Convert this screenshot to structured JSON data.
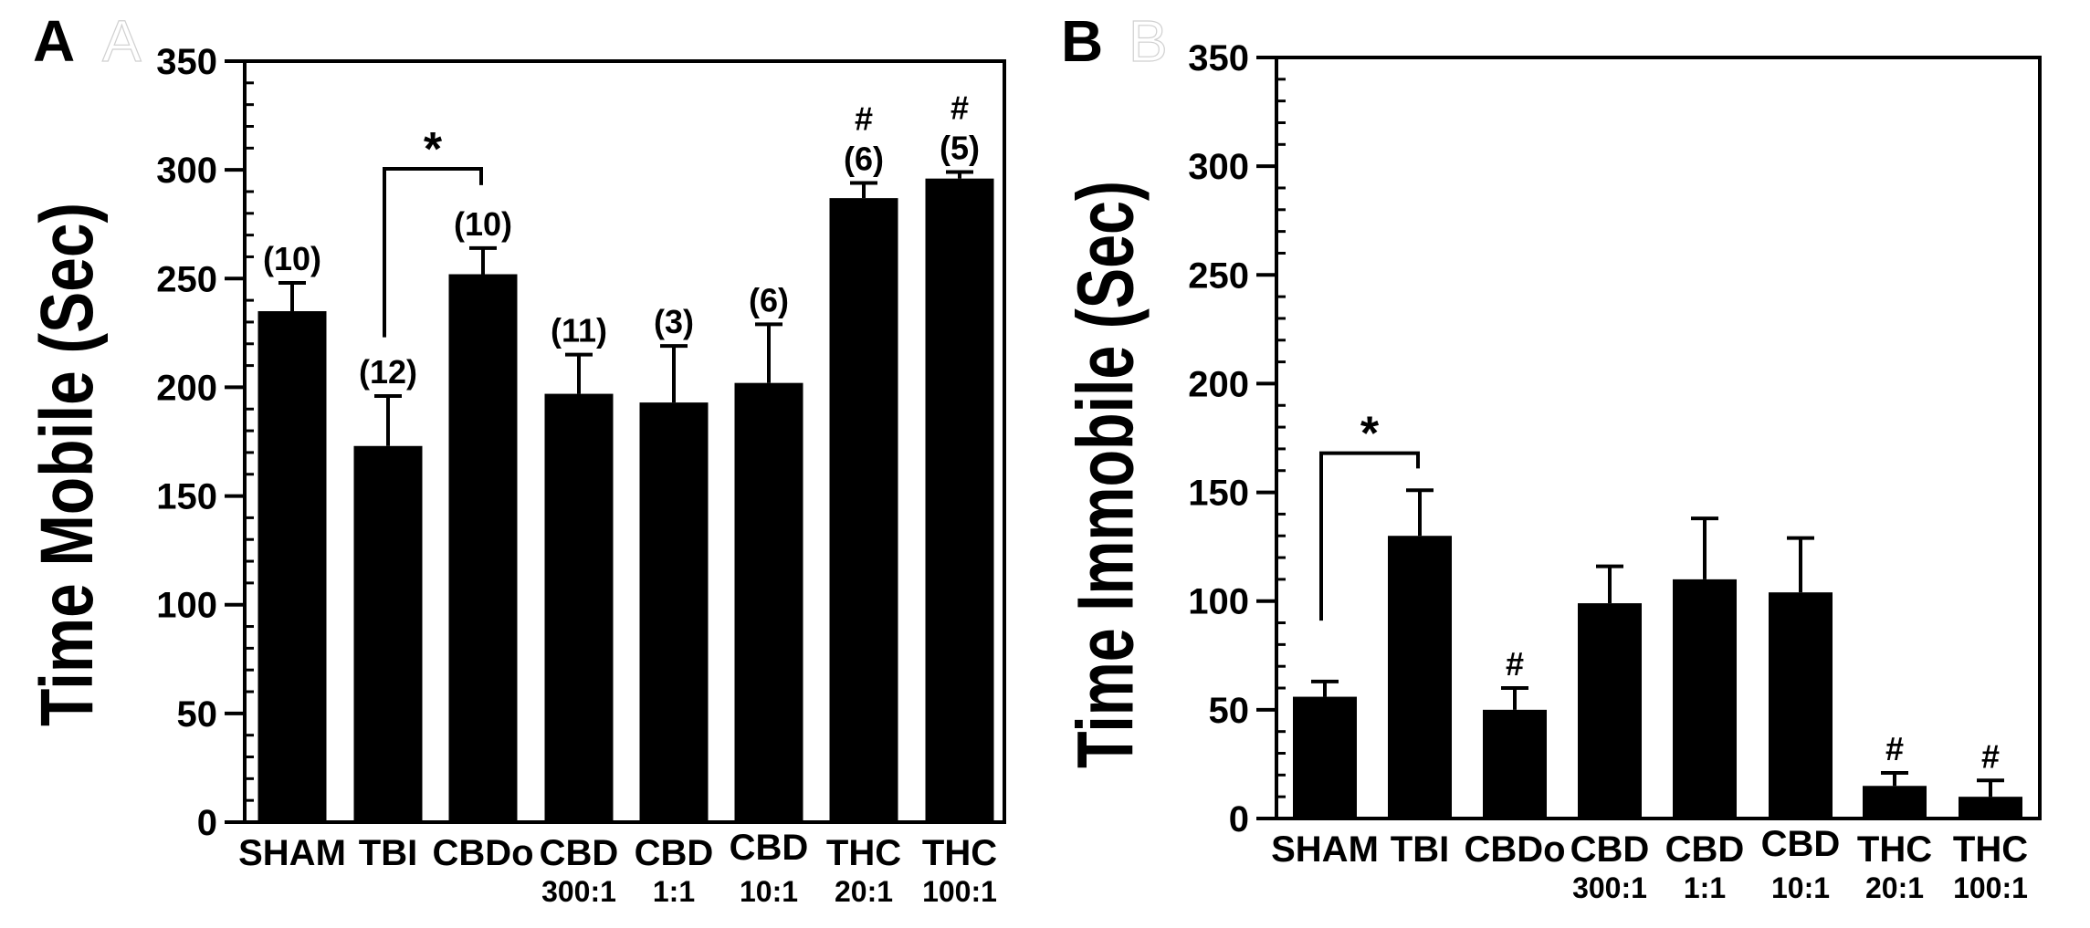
{
  "colors": {
    "bar": "#000000",
    "axis": "#000000",
    "background": "#ffffff",
    "ghost_letter": "#d0d0d0"
  },
  "chart_data": [
    {
      "panel": "A",
      "type": "bar",
      "ylabel": "Time Mobile (Sec)",
      "xlabel": "",
      "ylim": [
        0,
        350
      ],
      "yticks": [
        0,
        50,
        100,
        150,
        200,
        250,
        300,
        350
      ],
      "ytick_labels": [
        "0",
        "50",
        "100",
        "150",
        "200",
        "250",
        "300",
        "350"
      ],
      "minor_tick_step": 10,
      "grid": false,
      "categories": [
        "SHAM",
        "TBI",
        "CBDo",
        "CBD",
        "CBD",
        "CBD",
        "THC",
        "THC"
      ],
      "sub_labels": [
        "",
        "",
        "",
        "300:1",
        "1:1",
        "10:1",
        "20:1",
        "100:1"
      ],
      "values": [
        235,
        173,
        252,
        197,
        193,
        202,
        287,
        296
      ],
      "error_upper": [
        248,
        196,
        264,
        215,
        219,
        229,
        294,
        299
      ],
      "n_labels": [
        "(10)",
        "(12)",
        "(10)",
        "(11)",
        "(3)",
        "(6)",
        "(6)",
        "(5)"
      ],
      "markers": [
        "",
        "",
        "",
        "",
        "",
        "",
        "#",
        "#"
      ],
      "significance": {
        "from_index": 1,
        "to_index": 2,
        "label": "*",
        "left_bottom": 223,
        "top": 300.5,
        "right_bottom": 293
      }
    },
    {
      "panel": "B",
      "type": "bar",
      "ylabel": "Time Immobile (Sec)",
      "xlabel": "",
      "ylim": [
        0,
        350
      ],
      "yticks": [
        0,
        50,
        100,
        150,
        200,
        250,
        300,
        350
      ],
      "ytick_labels": [
        "0",
        "50",
        "100",
        "150",
        "200",
        "250",
        "300",
        "350"
      ],
      "minor_tick_step": 10,
      "grid": false,
      "categories": [
        "SHAM",
        "TBI",
        "CBDo",
        "CBD",
        "CBD",
        "CBD",
        "THC",
        "THC"
      ],
      "sub_labels": [
        "",
        "",
        "",
        "300:1",
        "1:1",
        "10:1",
        "20:1",
        "100:1"
      ],
      "values": [
        56,
        130,
        50,
        99,
        110,
        104,
        15,
        10
      ],
      "error_upper": [
        63,
        151,
        60,
        116,
        138,
        129,
        21,
        17.5
      ],
      "n_labels": [
        "",
        "",
        "",
        "",
        "",
        "",
        "",
        ""
      ],
      "markers": [
        "",
        "",
        "#",
        "",
        "",
        "",
        "#",
        "#"
      ],
      "significance": {
        "from_index": 0,
        "to_index": 1,
        "label": "*",
        "left_bottom": 91,
        "top": 168,
        "right_bottom": 161
      }
    }
  ]
}
